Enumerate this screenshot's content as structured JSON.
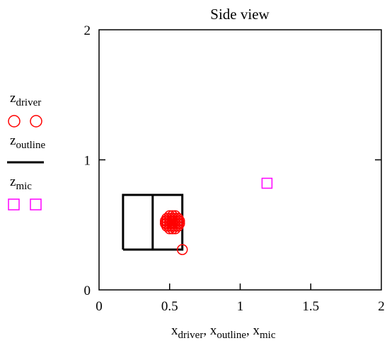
{
  "chart_data": {
    "type": "scatter",
    "title": "Side view",
    "xlim": [
      0,
      2
    ],
    "ylim": [
      0,
      2
    ],
    "x_ticks": [
      "0",
      "0.5",
      "1",
      "1.5",
      "2"
    ],
    "y_ticks": [
      "0",
      "1",
      "2"
    ],
    "grid": false,
    "legend_placement": "left",
    "xlabel_parts": [
      {
        "base": "x",
        "sub": "driver"
      },
      {
        "base": "x",
        "sub": "outline"
      },
      {
        "base": "x",
        "sub": "mic"
      }
    ],
    "xlabel_separator": ", ",
    "series": [
      {
        "name": {
          "base": "z",
          "sub": "driver"
        },
        "marker": "circle",
        "color": "#ff0000",
        "points": [
          [
            0.48,
            0.55
          ],
          [
            0.5,
            0.55
          ],
          [
            0.52,
            0.55
          ],
          [
            0.54,
            0.55
          ],
          [
            0.56,
            0.55
          ],
          [
            0.48,
            0.53
          ],
          [
            0.5,
            0.53
          ],
          [
            0.52,
            0.53
          ],
          [
            0.54,
            0.53
          ],
          [
            0.56,
            0.53
          ],
          [
            0.48,
            0.51
          ],
          [
            0.5,
            0.51
          ],
          [
            0.52,
            0.51
          ],
          [
            0.54,
            0.51
          ],
          [
            0.56,
            0.51
          ],
          [
            0.48,
            0.49
          ],
          [
            0.5,
            0.49
          ],
          [
            0.52,
            0.49
          ],
          [
            0.54,
            0.49
          ],
          [
            0.56,
            0.49
          ],
          [
            0.5,
            0.57
          ],
          [
            0.52,
            0.57
          ],
          [
            0.54,
            0.57
          ],
          [
            0.5,
            0.47
          ],
          [
            0.52,
            0.47
          ],
          [
            0.54,
            0.47
          ],
          [
            0.47,
            0.53
          ],
          [
            0.57,
            0.53
          ],
          [
            0.47,
            0.51
          ],
          [
            0.57,
            0.51
          ],
          [
            0.59,
            0.31
          ]
        ]
      },
      {
        "name": {
          "base": "z",
          "sub": "outline"
        },
        "marker": "line",
        "color": "#000000",
        "segments": [
          [
            [
              0.17,
              0.31
            ],
            [
              0.59,
              0.31
            ],
            [
              0.59,
              0.73
            ],
            [
              0.17,
              0.73
            ],
            [
              0.17,
              0.31
            ]
          ],
          [
            [
              0.38,
              0.31
            ],
            [
              0.38,
              0.73
            ]
          ]
        ]
      },
      {
        "name": {
          "base": "z",
          "sub": "mic"
        },
        "marker": "square",
        "color": "#ff00ff",
        "points": [
          [
            1.19,
            0.82
          ]
        ]
      }
    ]
  }
}
